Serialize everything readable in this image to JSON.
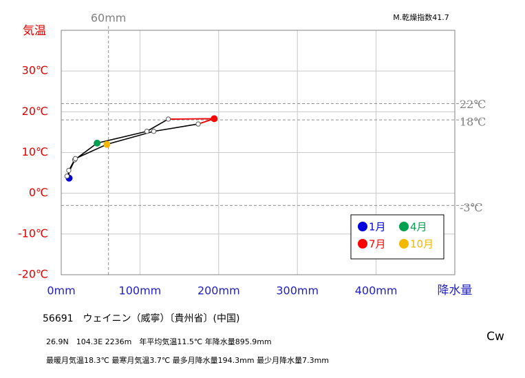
{
  "chart_data": {
    "type": "climograph",
    "x_label": "降水量",
    "y_label": "気温",
    "x": [
      10,
      9.6,
      17,
      45.6,
      108.8,
      136,
      194.3,
      174,
      117.5,
      58,
      18,
      7.3
    ],
    "values": [
      3.7,
      5.6,
      8.2,
      12.3,
      15.2,
      18.2,
      18.3,
      17,
      15.2,
      12,
      8.5,
      4.2
    ],
    "marker_colors": [
      "#0000dd",
      null,
      null,
      "#00a050",
      null,
      null,
      "#ff0000",
      null,
      null,
      "#f5b800",
      null,
      null
    ],
    "line_color": "#000000",
    "highlight_color": "#ff0000",
    "xlim": [
      0,
      500
    ],
    "ylim": [
      -20,
      40
    ],
    "xticks": [
      {
        "value": 0,
        "label": "0mm"
      },
      {
        "value": 100,
        "label": "100mm"
      },
      {
        "value": 200,
        "label": "200mm"
      },
      {
        "value": 300,
        "label": "300mm"
      },
      {
        "value": 400,
        "label": "400mm"
      }
    ],
    "yticks": [
      {
        "value": -20,
        "label": "-20℃"
      },
      {
        "value": -10,
        "label": "-10℃"
      },
      {
        "value": 0,
        "label": "0℃"
      },
      {
        "value": 10,
        "label": "10℃"
      },
      {
        "value": 20,
        "label": "20℃"
      },
      {
        "value": 30,
        "label": "30℃"
      }
    ],
    "ref_lines_y": [
      {
        "value": 22,
        "label": "22℃"
      },
      {
        "value": 18,
        "label": "18℃"
      },
      {
        "value": -3,
        "label": "-3℃"
      }
    ],
    "ref_line_x": {
      "value": 60,
      "label": "60mm"
    },
    "grid": true,
    "legend": [
      {
        "name": "1月",
        "color": "#0000dd"
      },
      {
        "name": "4月",
        "color": "#00a050"
      },
      {
        "name": "7月",
        "color": "#ff0000"
      },
      {
        "name": "10月",
        "color": "#f5b800"
      }
    ],
    "aridity": "M.乾燥指数41.7",
    "station": "56691　ウェイニン（威寧）〔貴州省〕(中国)",
    "info1": "26.9N　104.3E 2236m　年平均気温11.5℃ 年降水量895.9mm",
    "info2": "最暖月気温18.3℃ 最寒月気温3.7℃ 最多月降水量194.3mm 最少月降水量7.3mm",
    "climate": "Cw"
  }
}
